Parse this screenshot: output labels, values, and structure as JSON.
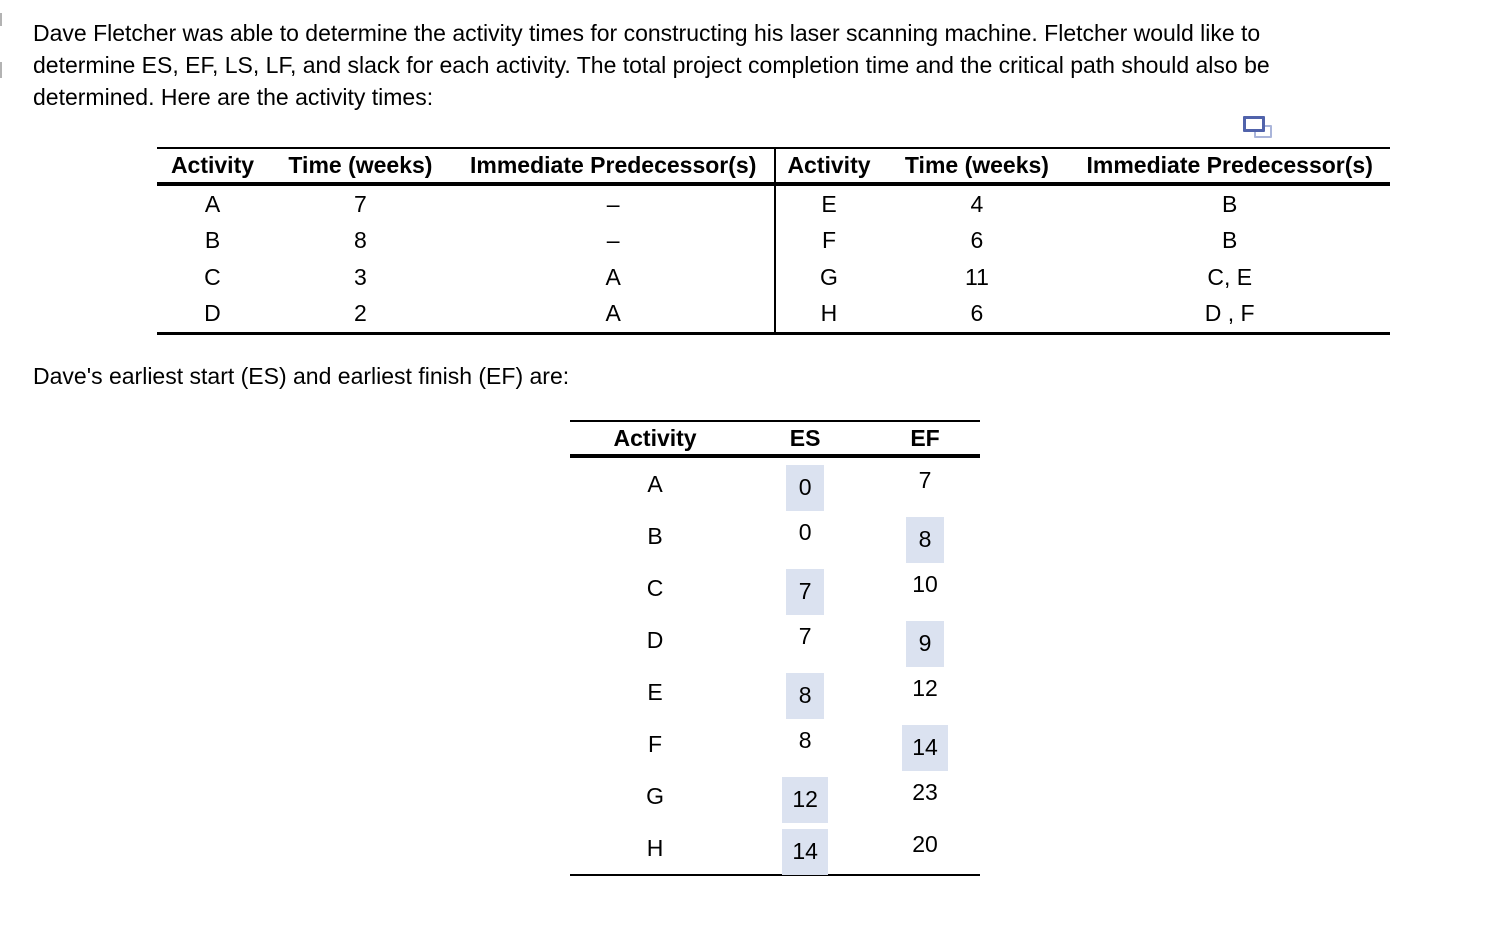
{
  "intro": {
    "lines": [
      "Dave Fletcher was able to determine the activity times for constructing his laser scanning machine. Fletcher would like to",
      "determine ES, EF, LS, LF, and slack for each activity. The total project completion time and the critical path should also be",
      "determined. Here are the activity times:"
    ]
  },
  "activity_table": {
    "headers": [
      "Activity",
      "Time (weeks)",
      "Immediate Predecessor(s)"
    ],
    "left_rows": [
      {
        "activity": "A",
        "time": "7",
        "pred": "–"
      },
      {
        "activity": "B",
        "time": "8",
        "pred": "–"
      },
      {
        "activity": "C",
        "time": "3",
        "pred": "A"
      },
      {
        "activity": "D",
        "time": "2",
        "pred": "A"
      }
    ],
    "right_rows": [
      {
        "activity": "E",
        "time": "4",
        "pred": "B"
      },
      {
        "activity": "F",
        "time": "6",
        "pred": "B"
      },
      {
        "activity": "G",
        "time": "11",
        "pred": "C, E"
      },
      {
        "activity": "H",
        "time": "6",
        "pred": "D , F"
      }
    ]
  },
  "es_ef": {
    "intro": "Dave's earliest start (ES) and earliest finish (EF) are:",
    "headers": [
      "Activity",
      "ES",
      "EF"
    ],
    "rows": [
      {
        "activity": "A",
        "es": "0",
        "ef": "7",
        "es_hl": true,
        "ef_hl": false
      },
      {
        "activity": "B",
        "es": "0",
        "ef": "8",
        "es_hl": false,
        "ef_hl": true
      },
      {
        "activity": "C",
        "es": "7",
        "ef": "10",
        "es_hl": true,
        "ef_hl": false
      },
      {
        "activity": "D",
        "es": "7",
        "ef": "9",
        "es_hl": false,
        "ef_hl": true
      },
      {
        "activity": "E",
        "es": "8",
        "ef": "12",
        "es_hl": true,
        "ef_hl": false
      },
      {
        "activity": "F",
        "es": "8",
        "ef": "14",
        "es_hl": false,
        "ef_hl": true
      },
      {
        "activity": "G",
        "es": "12",
        "ef": "23",
        "es_hl": true,
        "ef_hl": false
      },
      {
        "activity": "H",
        "es": "14",
        "ef": "20",
        "es_hl": true,
        "ef_hl": false
      }
    ]
  },
  "icons": {
    "copy": "copy-icon"
  },
  "colors": {
    "highlight": "#dbe2f0",
    "icon_dark": "#5163ab",
    "icon_light": "#aab5da",
    "text": "#000000"
  }
}
